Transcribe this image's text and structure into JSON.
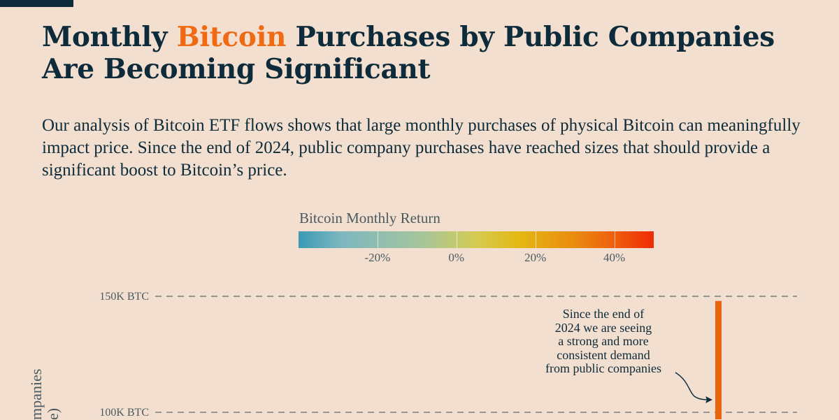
{
  "header": {
    "title_part1": "Monthly ",
    "title_highlight": "Bitcoin",
    "title_part2": " Purchases by Public Companies",
    "title_line2": "Are Becoming Significant",
    "subtitle": "Our analysis of Bitcoin ETF flows shows that large monthly purchases of physical Bitcoin can meaningfully impact price. Since the end of 2024, public company purchases have reached sizes that should provide a significant boost to Bitcoin’s price."
  },
  "colors": {
    "background": "#f2dfcf",
    "text_dark": "#0d2b3a",
    "accent": "#f06a14",
    "bar": "#e8650e"
  },
  "chart_data": {
    "type": "bar",
    "ylabel_visible": [
      "mpanies",
      "e)"
    ],
    "yticks": [
      {
        "value": 100000,
        "label": "100K BTC"
      },
      {
        "value": 150000,
        "label": "150K BTC"
      }
    ],
    "grid": true,
    "color_legend": {
      "title": "Bitcoin Monthly Return",
      "range": [
        -40,
        50
      ],
      "ticks": [
        {
          "value": -20,
          "label": "-20%"
        },
        {
          "value": 0,
          "label": "0%"
        },
        {
          "value": 20,
          "label": "20%"
        },
        {
          "value": 40,
          "label": "40%"
        }
      ]
    },
    "bars": [
      {
        "value": 148000,
        "return_pct": 32
      }
    ],
    "annotation": {
      "lines": [
        "Since the end of",
        "2024 we are seeing",
        "a strong and more",
        "consistent demand",
        "from public companies"
      ]
    }
  }
}
